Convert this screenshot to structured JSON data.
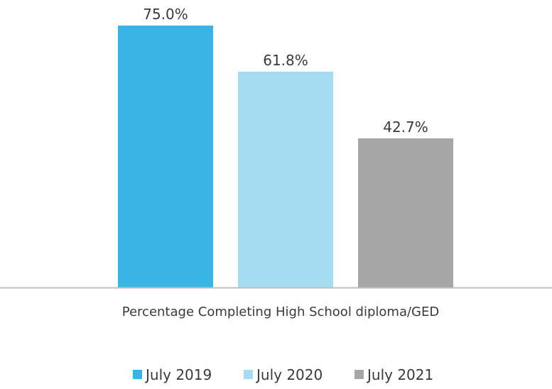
{
  "chart_data": {
    "type": "bar",
    "categories": [
      "Percentage Completing High School diploma/GED"
    ],
    "series": [
      {
        "name": "July 2019",
        "values": [
          75.0
        ],
        "label": "75.0%",
        "color": "#3AB4E4"
      },
      {
        "name": "July 2020",
        "values": [
          61.8
        ],
        "label": "61.8%",
        "color": "#A6DCF2"
      },
      {
        "name": "July 2021",
        "values": [
          42.7
        ],
        "label": "42.7%",
        "color": "#A6A6A6"
      }
    ],
    "ylim": [
      0,
      75
    ],
    "grid": false,
    "legend_position": "bottom",
    "axis_color": "#BFBFBF"
  }
}
